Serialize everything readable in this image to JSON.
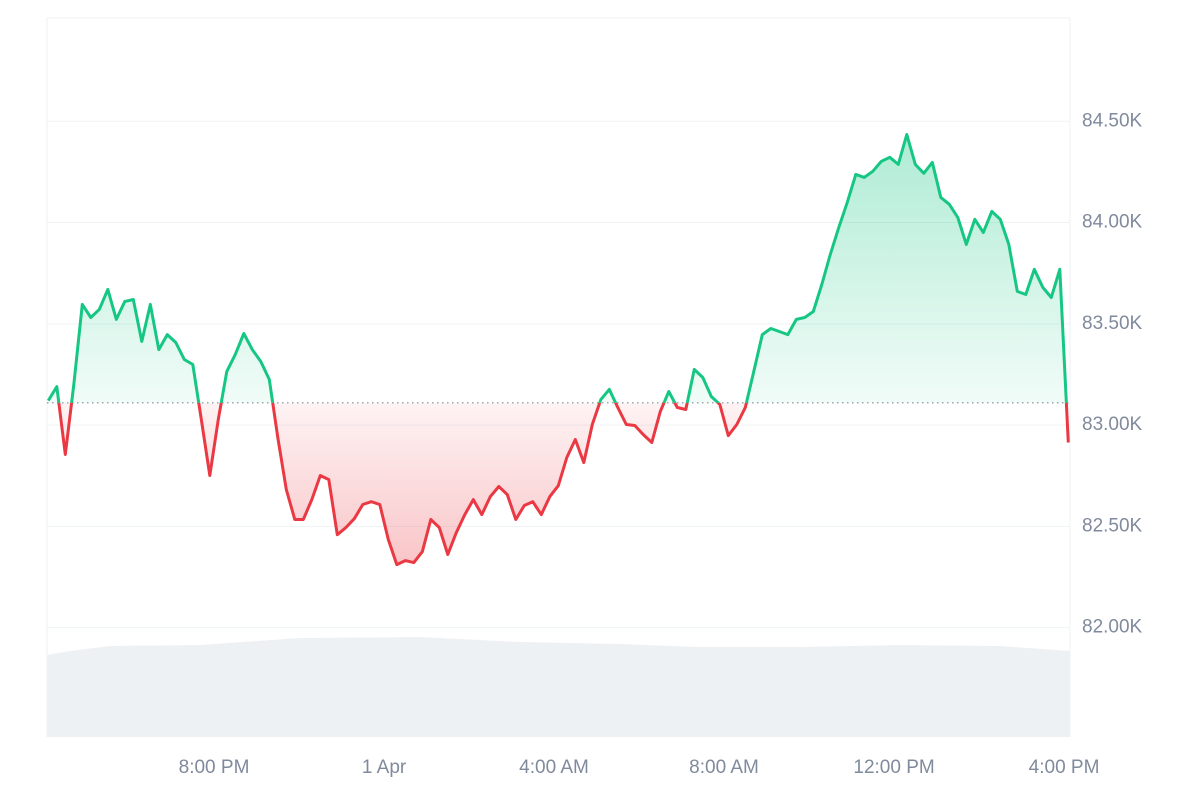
{
  "chart_data": {
    "type": "line",
    "x": [
      -7.9,
      -7.7,
      -7.5,
      -7.3,
      -7.1,
      -6.9,
      -6.7,
      -6.5,
      -6.3,
      -6.1,
      -5.9,
      -5.7,
      -5.5,
      -5.3,
      -5.1,
      -4.9,
      -4.7,
      -4.5,
      -4.3,
      -4.1,
      -3.9,
      -3.7,
      -3.5,
      -3.3,
      -3.1,
      -2.9,
      -2.7,
      -2.5,
      -2.3,
      -2.1,
      -1.9,
      -1.7,
      -1.5,
      -1.3,
      -1.1,
      -0.9,
      -0.7,
      -0.5,
      -0.3,
      -0.1,
      0.1,
      0.3,
      0.5,
      0.7,
      0.9,
      1.1,
      1.3,
      1.5,
      1.7,
      1.9,
      2.1,
      2.3,
      2.5,
      2.7,
      2.9,
      3.1,
      3.3,
      3.5,
      3.7,
      3.9,
      4.1,
      4.3,
      4.5,
      4.7,
      4.9,
      5.1,
      5.3,
      5.5,
      5.7,
      5.9,
      6.1,
      6.3,
      6.5,
      6.7,
      6.9,
      7.1,
      7.3,
      7.5,
      7.7,
      7.9,
      8.1,
      8.3,
      8.5,
      8.7,
      8.9,
      9.1,
      9.3,
      9.5,
      9.7,
      9.9,
      10.1,
      10.3,
      10.5,
      10.7,
      10.9,
      11.1,
      11.3,
      11.5,
      11.7,
      11.9,
      12.1,
      12.3,
      12.5,
      12.7,
      12.9,
      13.1,
      13.3,
      13.5,
      13.7,
      13.9,
      14.1,
      14.3,
      14.5,
      14.7,
      14.9,
      15.1,
      15.3,
      15.5,
      15.7,
      15.9,
      16.1
    ],
    "series": [
      {
        "values": [
          83121,
          83190,
          82855,
          83200,
          83596,
          83531,
          83571,
          83670,
          83522,
          83610,
          83620,
          83413,
          83596,
          83373,
          83447,
          83408,
          83324,
          83299,
          83028,
          82751,
          83028,
          83265,
          83349,
          83452,
          83373,
          83314,
          83225,
          82939,
          82682,
          82534,
          82534,
          82632,
          82751,
          82731,
          82459,
          82494,
          82538,
          82608,
          82622,
          82608,
          82435,
          82311,
          82331,
          82321,
          82375,
          82534,
          82494,
          82361,
          82469,
          82558,
          82632,
          82558,
          82647,
          82697,
          82657,
          82534,
          82603,
          82622,
          82558,
          82647,
          82701,
          82840,
          82929,
          82815,
          83003,
          83126,
          83176,
          83087,
          83003,
          82998,
          82953,
          82914,
          83067,
          83166,
          83087,
          83077,
          83275,
          83235,
          83141,
          83102,
          82948,
          83003,
          83087,
          83265,
          83447,
          83477,
          83462,
          83447,
          83522,
          83531,
          83561,
          83694,
          83843,
          83976,
          84100,
          84238,
          84223,
          84253,
          84302,
          84322,
          84287,
          84435,
          84287,
          84243,
          84297,
          84124,
          84090,
          84025,
          83892,
          84016,
          83951,
          84055,
          84016,
          83892,
          83660,
          83645,
          83769,
          83680,
          83630,
          83769,
          82914
        ]
      }
    ],
    "baseline": 83110,
    "up_color": "#16c784",
    "down_color": "#ea3943",
    "xlim": [
      -7.93,
      16.14
    ],
    "xticks": [
      {
        "value": -4,
        "label": "8:00 PM"
      },
      {
        "value": 0,
        "label": "1 Apr"
      },
      {
        "value": 4,
        "label": "4:00 AM"
      },
      {
        "value": 8,
        "label": "8:00 AM"
      },
      {
        "value": 12,
        "label": "12:00 PM"
      },
      {
        "value": 16,
        "label": "4:00 PM"
      }
    ],
    "ylim": [
      81460,
      85010
    ],
    "yticks": [
      {
        "value": 82000,
        "label": "82.00K"
      },
      {
        "value": 82500,
        "label": "82.50K"
      },
      {
        "value": 83000,
        "label": "83.00K"
      },
      {
        "value": 83500,
        "label": "83.50K"
      },
      {
        "value": 84000,
        "label": "84.00K"
      },
      {
        "value": 84500,
        "label": "84.50K"
      }
    ],
    "grid": true
  }
}
